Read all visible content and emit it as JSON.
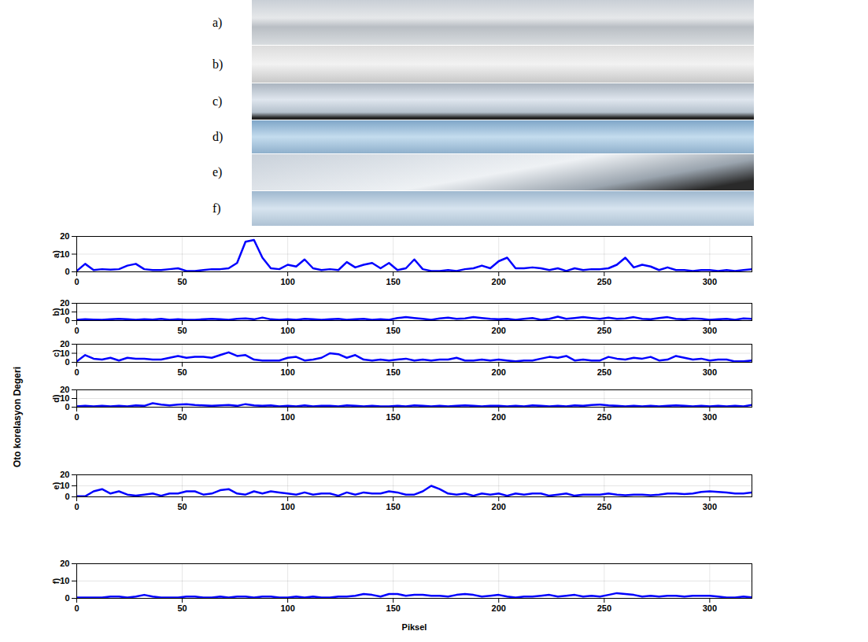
{
  "image_labels": [
    "a)",
    "b)",
    "c)",
    "d)",
    "e)",
    "f)"
  ],
  "ylabel": "Oto korelasyon Degeri",
  "chart_data": [
    {
      "type": "line",
      "ylabel": "a)",
      "color": "#0000ff",
      "grid": true,
      "xlim": [
        0,
        320
      ],
      "ylim": [
        0,
        20
      ],
      "xticks": [
        0,
        50,
        100,
        150,
        200,
        250,
        300
      ],
      "yticks": [
        0,
        10,
        20
      ],
      "x": [
        0,
        4,
        8,
        12,
        16,
        20,
        24,
        28,
        32,
        36,
        40,
        44,
        48,
        52,
        56,
        60,
        64,
        68,
        72,
        76,
        80,
        84,
        88,
        92,
        96,
        100,
        104,
        108,
        112,
        116,
        120,
        124,
        128,
        132,
        136,
        140,
        144,
        148,
        152,
        156,
        160,
        164,
        168,
        172,
        176,
        180,
        184,
        188,
        192,
        196,
        200,
        204,
        208,
        212,
        216,
        220,
        224,
        228,
        232,
        236,
        240,
        244,
        248,
        252,
        256,
        260,
        264,
        268,
        272,
        276,
        280,
        284,
        288,
        292,
        296,
        300,
        304,
        308,
        312,
        316,
        320
      ],
      "values": [
        0.5,
        4.5,
        1,
        1.5,
        1.2,
        1.5,
        3.5,
        4.5,
        1.5,
        1,
        1,
        1.5,
        2,
        0.5,
        0.5,
        1,
        1.5,
        1.5,
        2,
        5,
        17,
        18,
        8,
        2,
        1.5,
        4,
        3,
        7,
        2,
        1,
        1.5,
        1,
        5.5,
        2.5,
        4,
        5,
        2,
        5,
        1,
        2,
        7,
        1.5,
        0.5,
        0.5,
        1,
        0.5,
        1.5,
        2,
        3.5,
        2,
        6,
        8,
        2,
        2,
        2.5,
        2,
        1,
        2,
        0.5,
        2,
        1,
        1.5,
        1.5,
        2,
        4,
        8,
        2.5,
        4,
        3,
        1,
        2.5,
        1,
        1,
        0.5,
        1,
        1,
        0.5,
        1,
        0.5,
        1,
        1.5
      ]
    },
    {
      "type": "line",
      "ylabel": "b)",
      "color": "#0000ff",
      "grid": true,
      "xlim": [
        0,
        320
      ],
      "ylim": [
        0,
        20
      ],
      "xticks": [
        0,
        50,
        100,
        150,
        200,
        250,
        300
      ],
      "yticks": [
        0,
        10,
        20
      ],
      "x": [
        0,
        4,
        8,
        12,
        16,
        20,
        24,
        28,
        32,
        36,
        40,
        44,
        48,
        52,
        56,
        60,
        64,
        68,
        72,
        76,
        80,
        84,
        88,
        92,
        96,
        100,
        104,
        108,
        112,
        116,
        120,
        124,
        128,
        132,
        136,
        140,
        144,
        148,
        152,
        156,
        160,
        164,
        168,
        172,
        176,
        180,
        184,
        188,
        192,
        196,
        200,
        204,
        208,
        212,
        216,
        220,
        224,
        228,
        232,
        236,
        240,
        244,
        248,
        252,
        256,
        260,
        264,
        268,
        272,
        276,
        280,
        284,
        288,
        292,
        296,
        300,
        304,
        308,
        312,
        316,
        320
      ],
      "values": [
        1,
        1.5,
        1.2,
        1,
        1.5,
        2,
        1.5,
        1,
        1.5,
        1.2,
        2,
        1,
        1.5,
        1,
        1,
        1.5,
        2,
        1.5,
        1,
        2,
        2.5,
        1.5,
        3.5,
        1.5,
        1,
        1.5,
        1,
        2,
        1.5,
        1,
        1.5,
        2,
        1,
        1.5,
        2,
        1,
        1.5,
        1,
        3,
        4,
        3,
        2,
        1,
        2.5,
        3.5,
        2,
        2.5,
        4,
        3,
        2,
        1.5,
        2,
        1,
        2,
        3,
        1,
        2,
        4.5,
        2,
        3,
        4,
        3,
        2,
        3.5,
        2,
        2.5,
        4,
        2,
        1.5,
        3,
        4,
        2,
        1.5,
        2.5,
        2,
        1,
        1.5,
        2,
        1,
        2.5,
        2
      ]
    },
    {
      "type": "line",
      "ylabel": "c)",
      "color": "#0000ff",
      "grid": true,
      "xlim": [
        0,
        320
      ],
      "ylim": [
        0,
        20
      ],
      "xticks": [
        0,
        50,
        100,
        150,
        200,
        250,
        300
      ],
      "yticks": [
        0,
        10,
        20
      ],
      "x": [
        0,
        4,
        8,
        12,
        16,
        20,
        24,
        28,
        32,
        36,
        40,
        44,
        48,
        52,
        56,
        60,
        64,
        68,
        72,
        76,
        80,
        84,
        88,
        92,
        96,
        100,
        104,
        108,
        112,
        116,
        120,
        124,
        128,
        132,
        136,
        140,
        144,
        148,
        152,
        156,
        160,
        164,
        168,
        172,
        176,
        180,
        184,
        188,
        192,
        196,
        200,
        204,
        208,
        212,
        216,
        220,
        224,
        228,
        232,
        236,
        240,
        244,
        248,
        252,
        256,
        260,
        264,
        268,
        272,
        276,
        280,
        284,
        288,
        292,
        296,
        300,
        304,
        308,
        312,
        316,
        320
      ],
      "values": [
        1,
        8,
        4,
        3,
        5,
        2,
        5,
        4,
        4,
        3,
        3,
        5,
        7,
        5,
        6,
        6,
        5,
        8,
        11,
        7,
        8,
        3,
        2,
        2,
        2,
        5,
        6,
        2,
        3,
        5,
        10,
        9,
        5,
        8,
        3,
        2,
        3,
        2,
        3,
        4,
        2,
        3,
        2,
        3,
        3,
        5,
        2,
        2,
        3,
        2,
        3,
        2,
        1,
        2,
        2,
        4,
        6,
        5,
        7,
        2,
        3,
        2,
        2,
        6,
        4,
        3,
        5,
        4,
        6,
        2,
        3,
        7,
        5,
        3,
        4,
        2,
        3,
        3,
        1,
        1,
        2
      ]
    },
    {
      "type": "line",
      "ylabel": "d)",
      "color": "#0000ff",
      "grid": true,
      "xlim": [
        0,
        320
      ],
      "ylim": [
        0,
        20
      ],
      "xticks": [
        0,
        50,
        100,
        150,
        200,
        250,
        300
      ],
      "yticks": [
        0,
        10,
        20
      ],
      "x": [
        0,
        4,
        8,
        12,
        16,
        20,
        24,
        28,
        32,
        36,
        40,
        44,
        48,
        52,
        56,
        60,
        64,
        68,
        72,
        76,
        80,
        84,
        88,
        92,
        96,
        100,
        104,
        108,
        112,
        116,
        120,
        124,
        128,
        132,
        136,
        140,
        144,
        148,
        152,
        156,
        160,
        164,
        168,
        172,
        176,
        180,
        184,
        188,
        192,
        196,
        200,
        204,
        208,
        212,
        216,
        220,
        224,
        228,
        232,
        236,
        240,
        244,
        248,
        252,
        256,
        260,
        264,
        268,
        272,
        276,
        280,
        284,
        288,
        292,
        296,
        300,
        304,
        308,
        312,
        316,
        320
      ],
      "values": [
        1,
        1.5,
        1,
        1.5,
        1,
        1.5,
        1,
        2,
        1.5,
        4.5,
        3,
        2,
        3,
        3.5,
        2.5,
        2,
        1.5,
        2,
        2.5,
        1.5,
        3.5,
        2,
        1.5,
        2,
        1,
        1.5,
        1,
        2,
        1,
        1.5,
        1.5,
        1,
        2,
        1.5,
        1,
        1.5,
        1,
        1,
        1.5,
        1,
        2,
        1.5,
        1,
        1.5,
        1,
        1.5,
        2,
        1.5,
        1,
        1.5,
        1.5,
        1,
        1.5,
        1,
        2,
        1.5,
        1,
        1.5,
        1,
        2,
        1.5,
        2.5,
        3,
        2,
        1.5,
        1,
        1.5,
        1,
        1.5,
        1,
        1.5,
        2,
        1.5,
        1,
        1.5,
        1,
        1.5,
        1,
        1.5,
        1,
        2.5
      ]
    },
    {
      "type": "line",
      "ylabel": "e)",
      "color": "#0000ff",
      "grid": true,
      "xlim": [
        0,
        320
      ],
      "ylim": [
        0,
        20
      ],
      "xticks": [
        0,
        50,
        100,
        150,
        200,
        250,
        300
      ],
      "yticks": [
        0,
        10,
        20
      ],
      "x": [
        0,
        4,
        8,
        12,
        16,
        20,
        24,
        28,
        32,
        36,
        40,
        44,
        48,
        52,
        56,
        60,
        64,
        68,
        72,
        76,
        80,
        84,
        88,
        92,
        96,
        100,
        104,
        108,
        112,
        116,
        120,
        124,
        128,
        132,
        136,
        140,
        144,
        148,
        152,
        156,
        160,
        164,
        168,
        172,
        176,
        180,
        184,
        188,
        192,
        196,
        200,
        204,
        208,
        212,
        216,
        220,
        224,
        228,
        232,
        236,
        240,
        244,
        248,
        252,
        256,
        260,
        264,
        268,
        272,
        276,
        280,
        284,
        288,
        292,
        296,
        300,
        304,
        308,
        312,
        316,
        320
      ],
      "values": [
        0.5,
        0.5,
        5,
        7,
        3,
        5,
        2,
        1,
        2,
        3,
        1,
        3,
        3,
        5,
        5,
        2,
        3,
        6,
        7,
        3,
        2,
        5,
        3,
        5,
        4,
        3,
        2,
        4,
        2,
        3,
        3,
        1,
        4,
        2,
        4,
        3,
        3,
        5,
        4,
        2,
        2,
        5,
        10,
        7,
        3,
        2,
        3,
        1,
        3,
        2,
        3,
        1,
        3,
        2,
        3,
        3,
        1,
        2,
        3,
        1,
        2,
        2,
        2,
        3,
        2,
        1.5,
        2,
        2,
        1.5,
        2,
        3,
        3,
        2.5,
        3,
        4.5,
        5,
        4.5,
        4,
        3,
        3,
        4
      ]
    },
    {
      "type": "line",
      "ylabel": "f)",
      "xlabel": "Piksel",
      "color": "#0000ff",
      "grid": true,
      "xlim": [
        0,
        320
      ],
      "ylim": [
        0,
        20
      ],
      "xticks": [
        0,
        50,
        100,
        150,
        200,
        250,
        300
      ],
      "yticks": [
        0,
        10,
        20
      ],
      "x": [
        0,
        4,
        8,
        12,
        16,
        20,
        24,
        28,
        32,
        36,
        40,
        44,
        48,
        52,
        56,
        60,
        64,
        68,
        72,
        76,
        80,
        84,
        88,
        92,
        96,
        100,
        104,
        108,
        112,
        116,
        120,
        124,
        128,
        132,
        136,
        140,
        144,
        148,
        152,
        156,
        160,
        164,
        168,
        172,
        176,
        180,
        184,
        188,
        192,
        196,
        200,
        204,
        208,
        212,
        216,
        220,
        224,
        228,
        232,
        236,
        240,
        244,
        248,
        252,
        256,
        260,
        264,
        268,
        272,
        276,
        280,
        284,
        288,
        292,
        296,
        300,
        304,
        308,
        312,
        316,
        320
      ],
      "values": [
        0.5,
        0.5,
        0.5,
        0.5,
        1,
        1,
        0.5,
        1,
        2,
        1,
        0.5,
        0.5,
        0.5,
        1,
        1,
        0.5,
        0.5,
        1,
        0.5,
        1,
        1,
        0.5,
        1,
        1,
        0.5,
        0.5,
        1,
        0.5,
        1,
        0.5,
        0.5,
        1,
        1,
        1.5,
        2.5,
        2,
        1,
        2.5,
        2.5,
        1.5,
        2,
        2,
        1.5,
        1.5,
        1,
        2,
        2.5,
        2,
        1,
        1.5,
        2,
        1,
        0.5,
        1,
        1,
        1.5,
        2,
        1,
        1.5,
        2,
        1,
        1.5,
        1,
        2,
        3,
        2.5,
        2,
        1,
        1.5,
        1,
        1.5,
        1.5,
        1,
        1.5,
        1.5,
        1.5,
        1,
        0.5,
        0.5,
        1,
        0.5
      ]
    }
  ]
}
